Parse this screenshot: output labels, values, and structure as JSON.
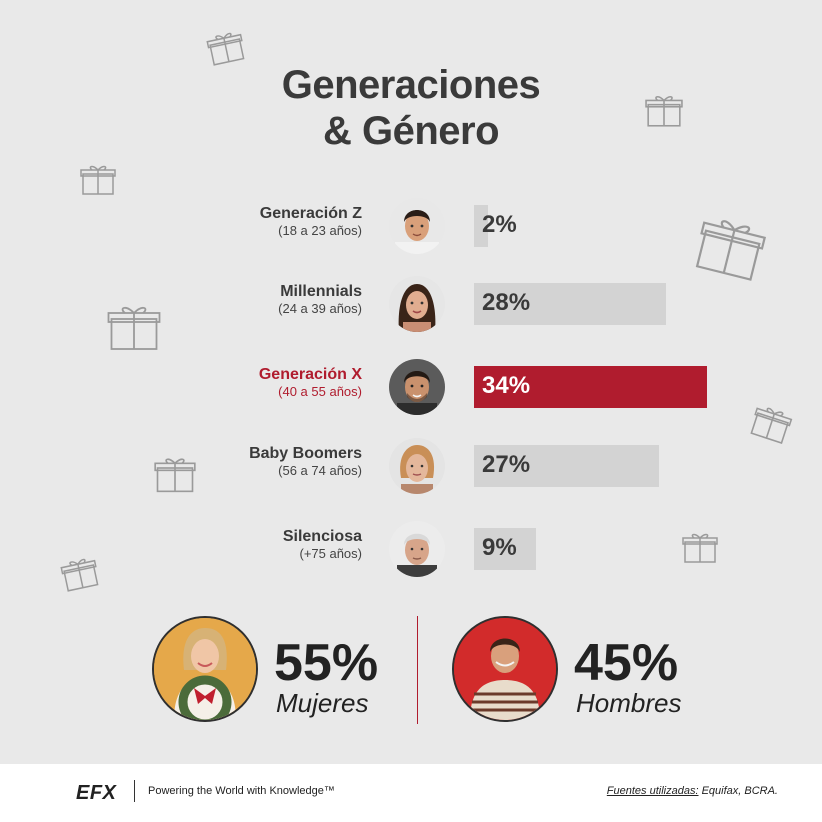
{
  "title": {
    "line1": "Generaciones",
    "line2": "& Género"
  },
  "colors": {
    "highlight": "#b01c2e",
    "bar": "#d3d3d3",
    "background": "#e9e9e9"
  },
  "chart_data": {
    "type": "bar",
    "orientation": "horizontal",
    "categories": [
      "Generación Z",
      "Millennials",
      "Generación X",
      "Baby Boomers",
      "Silenciosa"
    ],
    "subtitles": [
      "(18 a 23 años)",
      "(24 a 39 años)",
      "(40 a 55 años)",
      "(56 a 74 años)",
      "(+75 años)"
    ],
    "values": [
      2,
      28,
      34,
      27,
      9
    ],
    "value_labels": [
      "2%",
      "28%",
      "34%",
      "27%",
      "9%"
    ],
    "highlight_index": 2,
    "xlim": [
      0,
      34
    ]
  },
  "rows": [
    {
      "name": "Generación Z",
      "ages": "(18 a 23 años)",
      "value": "2%",
      "avatar_icon": "young-man-avatar"
    },
    {
      "name": "Millennials",
      "ages": "(24 a 39 años)",
      "value": "28%",
      "avatar_icon": "young-woman-avatar"
    },
    {
      "name": "Generación X",
      "ages": "(40 a 55 años)",
      "value": "34%",
      "avatar_icon": "man-avatar"
    },
    {
      "name": "Baby Boomers",
      "ages": "(56 a 74 años)",
      "value": "27%",
      "avatar_icon": "older-woman-avatar"
    },
    {
      "name": "Silenciosa",
      "ages": "(+75 años)",
      "value": "9%",
      "avatar_icon": "elderly-man-avatar"
    }
  ],
  "gender": {
    "women": {
      "pct": "55%",
      "label": "Mujeres"
    },
    "men": {
      "pct": "45%",
      "label": "Hombres"
    }
  },
  "footer": {
    "logo": "EFX",
    "tagline": "Powering the World with Knowledge™",
    "sources_label": "Fuentes utilizadas:",
    "sources_text": " Equifax, BCRA."
  }
}
